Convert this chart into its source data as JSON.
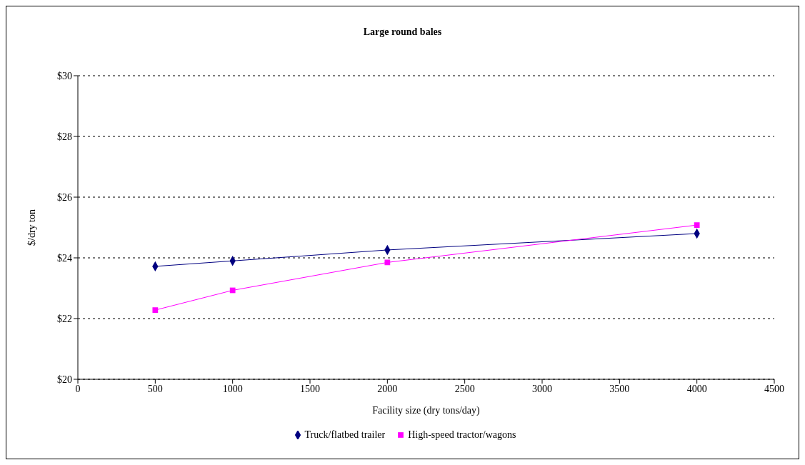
{
  "chart_data": {
    "type": "line",
    "title": "Large round bales",
    "xlabel": "Facility size (dry tons/day)",
    "ylabel": "$/dry ton",
    "xlim": [
      0,
      4500
    ],
    "xticks": [
      0,
      500,
      1000,
      1500,
      2000,
      2500,
      3000,
      3500,
      4000,
      4500
    ],
    "ylim": [
      20,
      30
    ],
    "yticks": [
      {
        "value": 20,
        "label": "$20"
      },
      {
        "value": 22,
        "label": "$22"
      },
      {
        "value": 24,
        "label": "$24"
      },
      {
        "value": 26,
        "label": "$26"
      },
      {
        "value": 28,
        "label": "$28"
      },
      {
        "value": 30,
        "label": "$30"
      }
    ],
    "grid": "y",
    "legend": "bottom",
    "line_style": "solid",
    "x": [
      500,
      1000,
      2000,
      4000
    ],
    "series": [
      {
        "name": "Truck/flatbed trailer",
        "color": "#000080",
        "marker": "diamond",
        "values": [
          23.72,
          23.9,
          24.26,
          24.8
        ]
      },
      {
        "name": "High-speed tractor/wagons",
        "color": "#ff00ff",
        "marker": "square",
        "values": [
          22.28,
          22.93,
          23.85,
          25.08
        ]
      }
    ]
  }
}
